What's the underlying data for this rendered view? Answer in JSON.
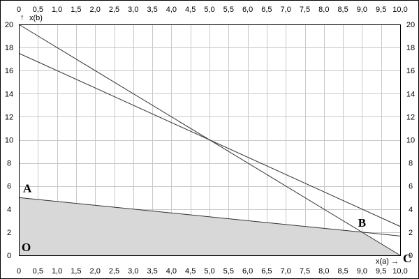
{
  "chart_data": {
    "type": "line",
    "title": "",
    "xlabel": "x(a)",
    "ylabel": "x(b)",
    "xlim": [
      0,
      10
    ],
    "ylim": [
      0,
      20
    ],
    "x_ticks": [
      "0",
      "0,5",
      "1,0",
      "1,5",
      "2,0",
      "2,5",
      "3,0",
      "3,5",
      "4,0",
      "4,5",
      "5,0",
      "5,5",
      "6,0",
      "6,5",
      "7,0",
      "7,5",
      "8,0",
      "8,5",
      "9,0",
      "9,5",
      "10,0"
    ],
    "y_ticks": [
      "0",
      "2",
      "4",
      "6",
      "8",
      "10",
      "12",
      "14",
      "16",
      "18",
      "20"
    ],
    "grid": true,
    "series": [
      {
        "values": [
          [
            0,
            20
          ],
          [
            10,
            0
          ]
        ]
      },
      {
        "values": [
          [
            0,
            17.5
          ],
          [
            10,
            2.5
          ]
        ]
      },
      {
        "values": [
          [
            0,
            5
          ],
          [
            10,
            1.67
          ]
        ]
      }
    ],
    "shaded_region": [
      [
        0,
        0
      ],
      [
        0,
        5
      ],
      [
        9,
        2
      ],
      [
        10,
        0
      ]
    ],
    "points": [
      {
        "label": "A",
        "x": 0,
        "y": 5
      },
      {
        "label": "B",
        "x": 9,
        "y": 2
      },
      {
        "label": "C",
        "x": 10,
        "y": 0
      },
      {
        "label": "O",
        "x": 0,
        "y": 0
      }
    ],
    "colors": {
      "lines": "#333333",
      "grid": "#c8c8c8",
      "fill": "#d8d8d8",
      "background": "#ffffff"
    }
  }
}
